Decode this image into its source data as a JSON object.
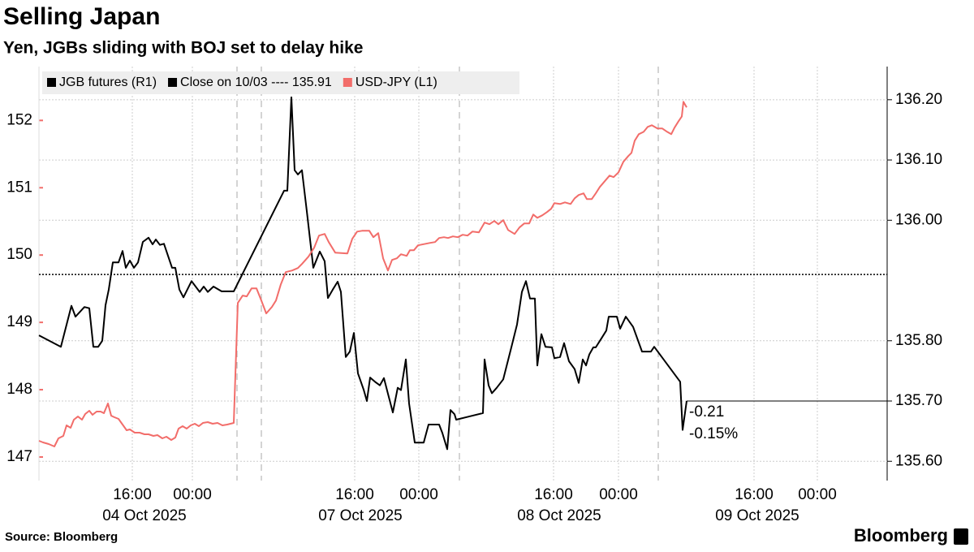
{
  "chart_data": {
    "type": "line",
    "title": "Selling Japan",
    "subtitle": "Yen, JGBs sliding with BOJ set to delay hike",
    "source": "Source: Bloomberg",
    "logo": "Bloomberg",
    "xlim": [
      0,
      104.5
    ],
    "xticks": [
      {
        "value": 11.5,
        "label": "16:00"
      },
      {
        "value": 18.9,
        "label": "00:00"
      },
      {
        "value": 38.9,
        "label": "16:00"
      },
      {
        "value": 46.8,
        "label": "00:00"
      },
      {
        "value": 63.4,
        "label": "16:00"
      },
      {
        "value": 71.4,
        "label": "00:00"
      },
      {
        "value": 88.1,
        "label": "16:00"
      },
      {
        "value": 95.9,
        "label": "00:00"
      }
    ],
    "date_labels": [
      {
        "value": 13.0,
        "label": "04 Oct 2025"
      },
      {
        "value": 39.6,
        "label": "07 Oct 2025"
      },
      {
        "value": 64.1,
        "label": "08 Oct 2025"
      },
      {
        "value": 88.5,
        "label": "09 Oct 2025"
      }
    ],
    "session_lines": [
      24.4,
      27.4,
      51.8,
      76.3
    ],
    "ylim": [
      146.65,
      152.8
    ],
    "yticks": [
      147,
      148,
      149,
      150,
      151,
      152
    ],
    "y2lim": [
      135.568,
      136.255
    ],
    "y2ticks": [
      {
        "value": 135.6,
        "label": "135.60"
      },
      {
        "value": 135.7,
        "label": "135.70"
      },
      {
        "value": 135.8,
        "label": "135.80"
      },
      {
        "value": 136.0,
        "label": "136.00"
      },
      {
        "value": 136.1,
        "label": "136.10"
      },
      {
        "value": 136.2,
        "label": "136.20"
      }
    ],
    "grid": true,
    "close": {
      "label": "Close on 10/03 ---- 135.91",
      "value": 135.91,
      "color": "#000000"
    },
    "annotations": [
      "-0.21",
      "-0.15%"
    ],
    "series": [
      {
        "name": "JGB futures (R1)",
        "color": "#000000",
        "axis": "y2",
        "x": [
          0,
          2.7,
          4.0,
          4.5,
          5.6,
          6.2,
          6.7,
          7.3,
          7.8,
          8.2,
          8.6,
          9.1,
          9.8,
          10.3,
          10.7,
          11.2,
          11.7,
          12.2,
          12.8,
          13.5,
          14.0,
          14.4,
          14.9,
          15.4,
          16.4,
          16.8,
          17.3,
          17.8,
          18.8,
          19.8,
          20.3,
          20.8,
          21.5,
          22.5,
          24.0,
          30.2,
          30.6,
          31.1,
          31.5,
          31.9,
          32.4,
          33.0,
          33.8,
          34.6,
          35.2,
          35.6,
          36.2,
          36.8,
          37.2,
          37.8,
          38.3,
          38.8,
          39.3,
          40.0,
          40.4,
          40.8,
          41.4,
          42.0,
          42.5,
          43.0,
          43.6,
          44.2,
          44.6,
          45.2,
          45.6,
          46.3,
          47.4,
          48.0,
          49.3,
          49.7,
          50.3,
          50.7,
          51.2,
          51.4,
          52.9,
          54.7,
          54.9,
          55.4,
          55.8,
          56.4,
          57.2,
          58.2,
          58.9,
          59.5,
          60.0,
          60.5,
          61.1,
          61.4,
          61.9,
          62.4,
          63.2,
          63.5,
          64.2,
          64.7,
          65.3,
          66.0,
          66.5,
          67.0,
          67.4,
          67.8,
          68.3,
          68.6,
          69.3,
          69.9,
          70.2,
          71.2,
          71.6,
          72.3,
          73.2,
          74.3,
          75.4,
          75.8,
          79.0,
          79.3,
          79.8
        ],
        "values": [
          135.809,
          135.79,
          135.858,
          135.84,
          135.856,
          135.854,
          135.79,
          135.79,
          135.8,
          135.859,
          135.885,
          135.93,
          135.93,
          135.949,
          135.921,
          135.933,
          135.921,
          135.93,
          135.964,
          135.971,
          135.96,
          135.968,
          135.959,
          135.961,
          135.921,
          135.921,
          135.885,
          135.872,
          135.899,
          135.881,
          135.89,
          135.881,
          135.89,
          135.882,
          135.882,
          136.049,
          136.049,
          136.204,
          136.083,
          136.076,
          136.083,
          136.015,
          135.921,
          135.948,
          135.932,
          135.871,
          135.885,
          135.898,
          135.881,
          135.773,
          135.782,
          135.813,
          135.746,
          135.719,
          135.7,
          135.739,
          135.732,
          135.726,
          135.738,
          135.712,
          135.681,
          135.722,
          135.718,
          135.769,
          135.696,
          135.631,
          135.631,
          135.661,
          135.661,
          135.647,
          135.62,
          135.685,
          135.678,
          135.669,
          135.674,
          135.68,
          135.769,
          135.726,
          135.713,
          135.722,
          135.736,
          135.789,
          135.827,
          135.881,
          135.899,
          135.87,
          135.87,
          135.759,
          135.811,
          135.79,
          135.789,
          135.771,
          135.773,
          135.796,
          135.766,
          135.753,
          135.73,
          135.769,
          135.759,
          135.777,
          135.789,
          135.789,
          135.804,
          135.817,
          135.84,
          135.84,
          135.82,
          135.84,
          135.823,
          135.782,
          135.782,
          135.79,
          135.732,
          135.652,
          135.7
        ]
      },
      {
        "name": "USD-JPY (L1)",
        "color": "#f26d6a",
        "axis": "y",
        "x": [
          0,
          0.5,
          1.2,
          1.9,
          2.4,
          3.0,
          3.4,
          3.9,
          4.3,
          4.8,
          5.3,
          5.7,
          6.2,
          6.6,
          7.1,
          7.6,
          8.0,
          8.5,
          8.9,
          9.3,
          9.8,
          10.3,
          10.8,
          11.2,
          11.8,
          12.4,
          13.0,
          13.5,
          14.1,
          14.6,
          15.2,
          15.7,
          16.3,
          16.8,
          17.2,
          17.7,
          18.2,
          18.7,
          19.2,
          19.7,
          20.2,
          20.8,
          21.4,
          22.0,
          22.6,
          23.2,
          24.0,
          24.5,
          25.1,
          25.6,
          26.2,
          26.8,
          27.4,
          28.0,
          28.7,
          29.2,
          29.8,
          30.4,
          31.2,
          31.9,
          32.4,
          33.2,
          33.9,
          34.5,
          35.2,
          35.7,
          36.5,
          38.0,
          38.6,
          39.2,
          39.8,
          40.7,
          41.2,
          41.8,
          42.4,
          43.0,
          43.5,
          44.1,
          44.6,
          45.3,
          45.7,
          46.2,
          46.7,
          47.2,
          48.2,
          48.8,
          49.3,
          49.9,
          50.4,
          51.0,
          51.6,
          52.2,
          52.8,
          53.4,
          54.2,
          54.9,
          55.5,
          56.1,
          56.6,
          57.2,
          57.8,
          58.6,
          59.2,
          59.8,
          60.4,
          60.9,
          61.4,
          62.0,
          62.6,
          63.1,
          63.5,
          64.2,
          64.8,
          65.5,
          66.0,
          66.5,
          67.1,
          67.5,
          68.1,
          68.6,
          69.1,
          69.7,
          70.3,
          70.8,
          71.4,
          72.0,
          72.6,
          73.0,
          73.4,
          73.9,
          74.5,
          75.0,
          75.5,
          76.2,
          76.8,
          77.4,
          77.9,
          78.3,
          78.8,
          79.2,
          79.4,
          79.8
        ],
        "values": [
          147.241,
          147.217,
          147.193,
          147.157,
          147.277,
          147.313,
          147.47,
          147.434,
          147.554,
          147.602,
          147.554,
          147.639,
          147.687,
          147.627,
          147.675,
          147.675,
          147.651,
          147.795,
          147.614,
          147.59,
          147.566,
          147.482,
          147.398,
          147.41,
          147.362,
          147.362,
          147.337,
          147.337,
          147.313,
          147.325,
          147.277,
          147.301,
          147.253,
          147.289,
          147.422,
          147.458,
          147.422,
          147.47,
          147.494,
          147.458,
          147.506,
          147.518,
          147.494,
          147.506,
          147.47,
          147.482,
          147.506,
          149.289,
          149.398,
          149.386,
          149.506,
          149.506,
          149.325,
          149.133,
          149.229,
          149.325,
          149.566,
          149.747,
          149.771,
          149.807,
          149.867,
          149.976,
          150.108,
          150.289,
          150.313,
          150.193,
          150.036,
          150.024,
          150.241,
          150.349,
          150.361,
          150.361,
          150.265,
          150.325,
          149.952,
          149.771,
          149.928,
          149.952,
          150.012,
          149.988,
          150.072,
          150.072,
          150.145,
          150.157,
          150.181,
          150.193,
          150.253,
          150.265,
          150.253,
          150.277,
          150.265,
          150.301,
          150.289,
          150.349,
          150.337,
          150.482,
          150.458,
          150.506,
          150.458,
          150.518,
          150.373,
          150.313,
          150.41,
          150.47,
          150.47,
          150.602,
          150.554,
          150.59,
          150.639,
          150.687,
          150.771,
          150.759,
          150.783,
          150.759,
          150.843,
          150.892,
          150.916,
          150.831,
          150.831,
          150.916,
          151.012,
          151.096,
          151.181,
          151.157,
          151.229,
          151.386,
          151.47,
          151.518,
          151.699,
          151.795,
          151.831,
          151.904,
          151.928,
          151.88,
          151.88,
          151.831,
          151.795,
          151.892,
          151.988,
          152.06,
          152.277,
          152.193
        ]
      }
    ]
  }
}
